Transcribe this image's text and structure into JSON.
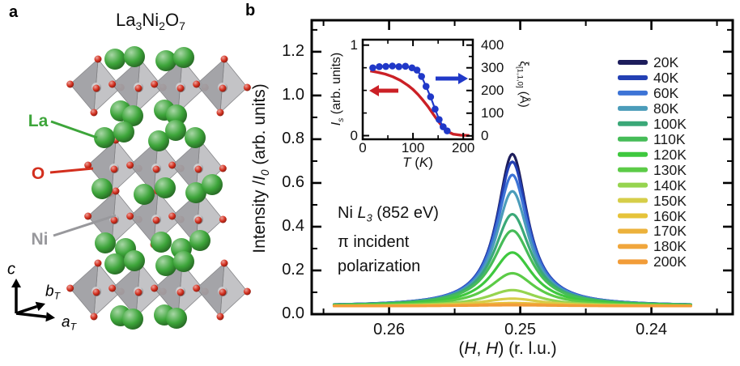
{
  "panel_a": {
    "label": "a",
    "title": [
      {
        "t": "La"
      },
      {
        "t": "3",
        "s": "sub"
      },
      {
        "t": "Ni"
      },
      {
        "t": "2",
        "s": "sub"
      },
      {
        "t": "O"
      },
      {
        "t": "7",
        "s": "sub"
      }
    ],
    "atoms": {
      "la": {
        "label": "La",
        "color": "#3da53a"
      },
      "o": {
        "label": "O",
        "color": "#d32f1e"
      },
      "ni": {
        "label": "Ni",
        "color": "#98989c"
      }
    },
    "octahedron_color": "#b2b2b6",
    "axes": {
      "c": [
        {
          "t": "c",
          "s": "i"
        }
      ],
      "b": [
        {
          "t": "b",
          "s": "i"
        },
        {
          "t": "T",
          "s": "subi"
        }
      ],
      "a": [
        {
          "t": "a",
          "s": "i"
        },
        {
          "t": "T",
          "s": "subi"
        }
      ]
    }
  },
  "panel_b": {
    "label": "b",
    "annotation": [
      [
        {
          "t": "Ni "
        },
        {
          "t": "L",
          "s": "i"
        },
        {
          "t": "3",
          "s": "subi"
        },
        {
          "t": " (852 eV)"
        }
      ],
      [
        {
          "t": "π incident"
        }
      ],
      [
        {
          "t": "polarization"
        }
      ]
    ]
  },
  "chart_data": [
    {
      "id": "main_peak_scan",
      "type": "line",
      "xlabel_rich": [
        {
          "t": "("
        },
        {
          "t": "H",
          "s": "i"
        },
        {
          "t": ",  "
        },
        {
          "t": "H",
          "s": "i"
        },
        {
          "t": ") (r. l.u.)"
        }
      ],
      "ylabel_rich": [
        {
          "t": "Intensity /"
        },
        {
          "t": "I",
          "s": "i"
        },
        {
          "t": "0",
          "s": "subi"
        },
        {
          "t": " (arb. units)"
        }
      ],
      "x_axis": {
        "range": [
          0.2659,
          0.2338
        ],
        "reversed": true,
        "tick_values": [
          0.26,
          0.25,
          0.24
        ],
        "tick_labels": [
          "0.26",
          "0.25",
          "0.24"
        ],
        "minor_ticks": [
          0.265,
          0.255,
          0.245,
          0.235
        ]
      },
      "y_axis": {
        "range": [
          0,
          1.344
        ],
        "tick_values": [
          0,
          0.2,
          0.4,
          0.6,
          0.8,
          1.0,
          1.2
        ],
        "tick_labels": [
          "0.0",
          "0.2",
          "0.4",
          "0.6",
          "0.8",
          "1.0",
          "1.2"
        ],
        "minor_ticks": [
          0.1,
          0.3,
          0.5,
          0.7,
          0.9,
          1.1,
          1.3
        ]
      },
      "peak_center_H": 0.2506,
      "baseline_intensity": 0.037,
      "curve_H_range": [
        0.2642,
        0.237
      ],
      "series": [
        {
          "name": "20K",
          "color": "#1d1d5c",
          "peak_height": 0.695,
          "hwhm": 0.0014
        },
        {
          "name": "40K",
          "color": "#2340b4",
          "peak_height": 0.66,
          "hwhm": 0.00145
        },
        {
          "name": "60K",
          "color": "#3d74d6",
          "peak_height": 0.6,
          "hwhm": 0.0015
        },
        {
          "name": "80K",
          "color": "#4b9cba",
          "peak_height": 0.525,
          "hwhm": 0.00155
        },
        {
          "name": "100K",
          "color": "#3aa878",
          "peak_height": 0.42,
          "hwhm": 0.0017
        },
        {
          "name": "110K",
          "color": "#46bc58",
          "peak_height": 0.345,
          "hwhm": 0.0018
        },
        {
          "name": "120K",
          "color": "#3ec83e",
          "peak_height": 0.245,
          "hwhm": 0.0019
        },
        {
          "name": "130K",
          "color": "#5ccb47",
          "peak_height": 0.15,
          "hwhm": 0.0021
        },
        {
          "name": "140K",
          "color": "#96d44f",
          "peak_height": 0.073,
          "hwhm": 0.0023
        },
        {
          "name": "150K",
          "color": "#d6ce49",
          "peak_height": 0.034,
          "hwhm": 0.0027
        },
        {
          "name": "160K",
          "color": "#e6c33a",
          "peak_height": 0.014,
          "hwhm": 0.0031
        },
        {
          "name": "170K",
          "color": "#ecb23c",
          "peak_height": 0.009,
          "hwhm": 0.0035
        },
        {
          "name": "180K",
          "color": "#f0a63c",
          "peak_height": 0.006,
          "hwhm": 0.0039
        },
        {
          "name": "200K",
          "color": "#f29c38",
          "peak_height": 0.004,
          "hwhm": 0.0043
        }
      ],
      "legend": {
        "position": "right"
      }
    },
    {
      "id": "inset_temperature_dependence",
      "type": "line+scatter",
      "xlabel_rich": [
        {
          "t": "T",
          "s": "i"
        },
        {
          "t": " ("
        },
        {
          "t": "K",
          "s": "i"
        },
        {
          "t": ")"
        }
      ],
      "left_ylabel_rich": [
        {
          "t": "I",
          "s": "i"
        },
        {
          "t": "s",
          "s": "subi"
        },
        {
          "t": " (arb. units)"
        }
      ],
      "right_ylabel_rich": [
        {
          "t": "ξ"
        },
        {
          "t": "[1,1,0]",
          "s": "sub"
        },
        {
          "t": " (Å)"
        }
      ],
      "x_axis": {
        "range": [
          0,
          219
        ],
        "tick_values": [
          0,
          100,
          200
        ],
        "tick_labels": [
          "0",
          "100",
          "200"
        ],
        "minor_ticks": [
          50,
          150
        ]
      },
      "left_y_axis": {
        "range": [
          -0.04,
          1.06
        ],
        "tick_values": [
          0,
          1
        ],
        "tick_labels": [
          "0",
          "1"
        ],
        "minor_ticks": [
          0.25,
          0.5,
          0.75
        ]
      },
      "right_y_axis": {
        "range": [
          -15,
          424
        ],
        "tick_values": [
          0,
          100,
          200,
          300,
          400
        ],
        "tick_labels": [
          "0",
          "100",
          "200",
          "300",
          "400"
        ],
        "minor_ticks": [
          50,
          150,
          250,
          350
        ]
      },
      "red_curve": {
        "name": "Is_order_parameter",
        "color": "#cb2026",
        "T": [
          15,
          30,
          45,
          60,
          75,
          90,
          100,
          110,
          120,
          130,
          140,
          150,
          160,
          170,
          180,
          195,
          212
        ],
        "values": [
          0.715,
          0.7,
          0.68,
          0.65,
          0.61,
          0.555,
          0.51,
          0.455,
          0.39,
          0.32,
          0.24,
          0.16,
          0.09,
          0.042,
          0.016,
          0.006,
          0.002
        ]
      },
      "blue_points": {
        "name": "correlation_length_xi_angstrom",
        "color": "#2038c8",
        "T": [
          20,
          33,
          46,
          59,
          72,
          85,
          98,
          108,
          117,
          126,
          135,
          144,
          152,
          160,
          168
        ],
        "values": [
          300,
          305,
          306,
          308,
          305,
          307,
          300,
          290,
          262,
          218,
          172,
          118,
          72,
          40,
          22
        ]
      },
      "arrows": [
        {
          "dir": "left",
          "color": "#cb2026"
        },
        {
          "dir": "right",
          "color": "#2038c8"
        }
      ]
    }
  ]
}
